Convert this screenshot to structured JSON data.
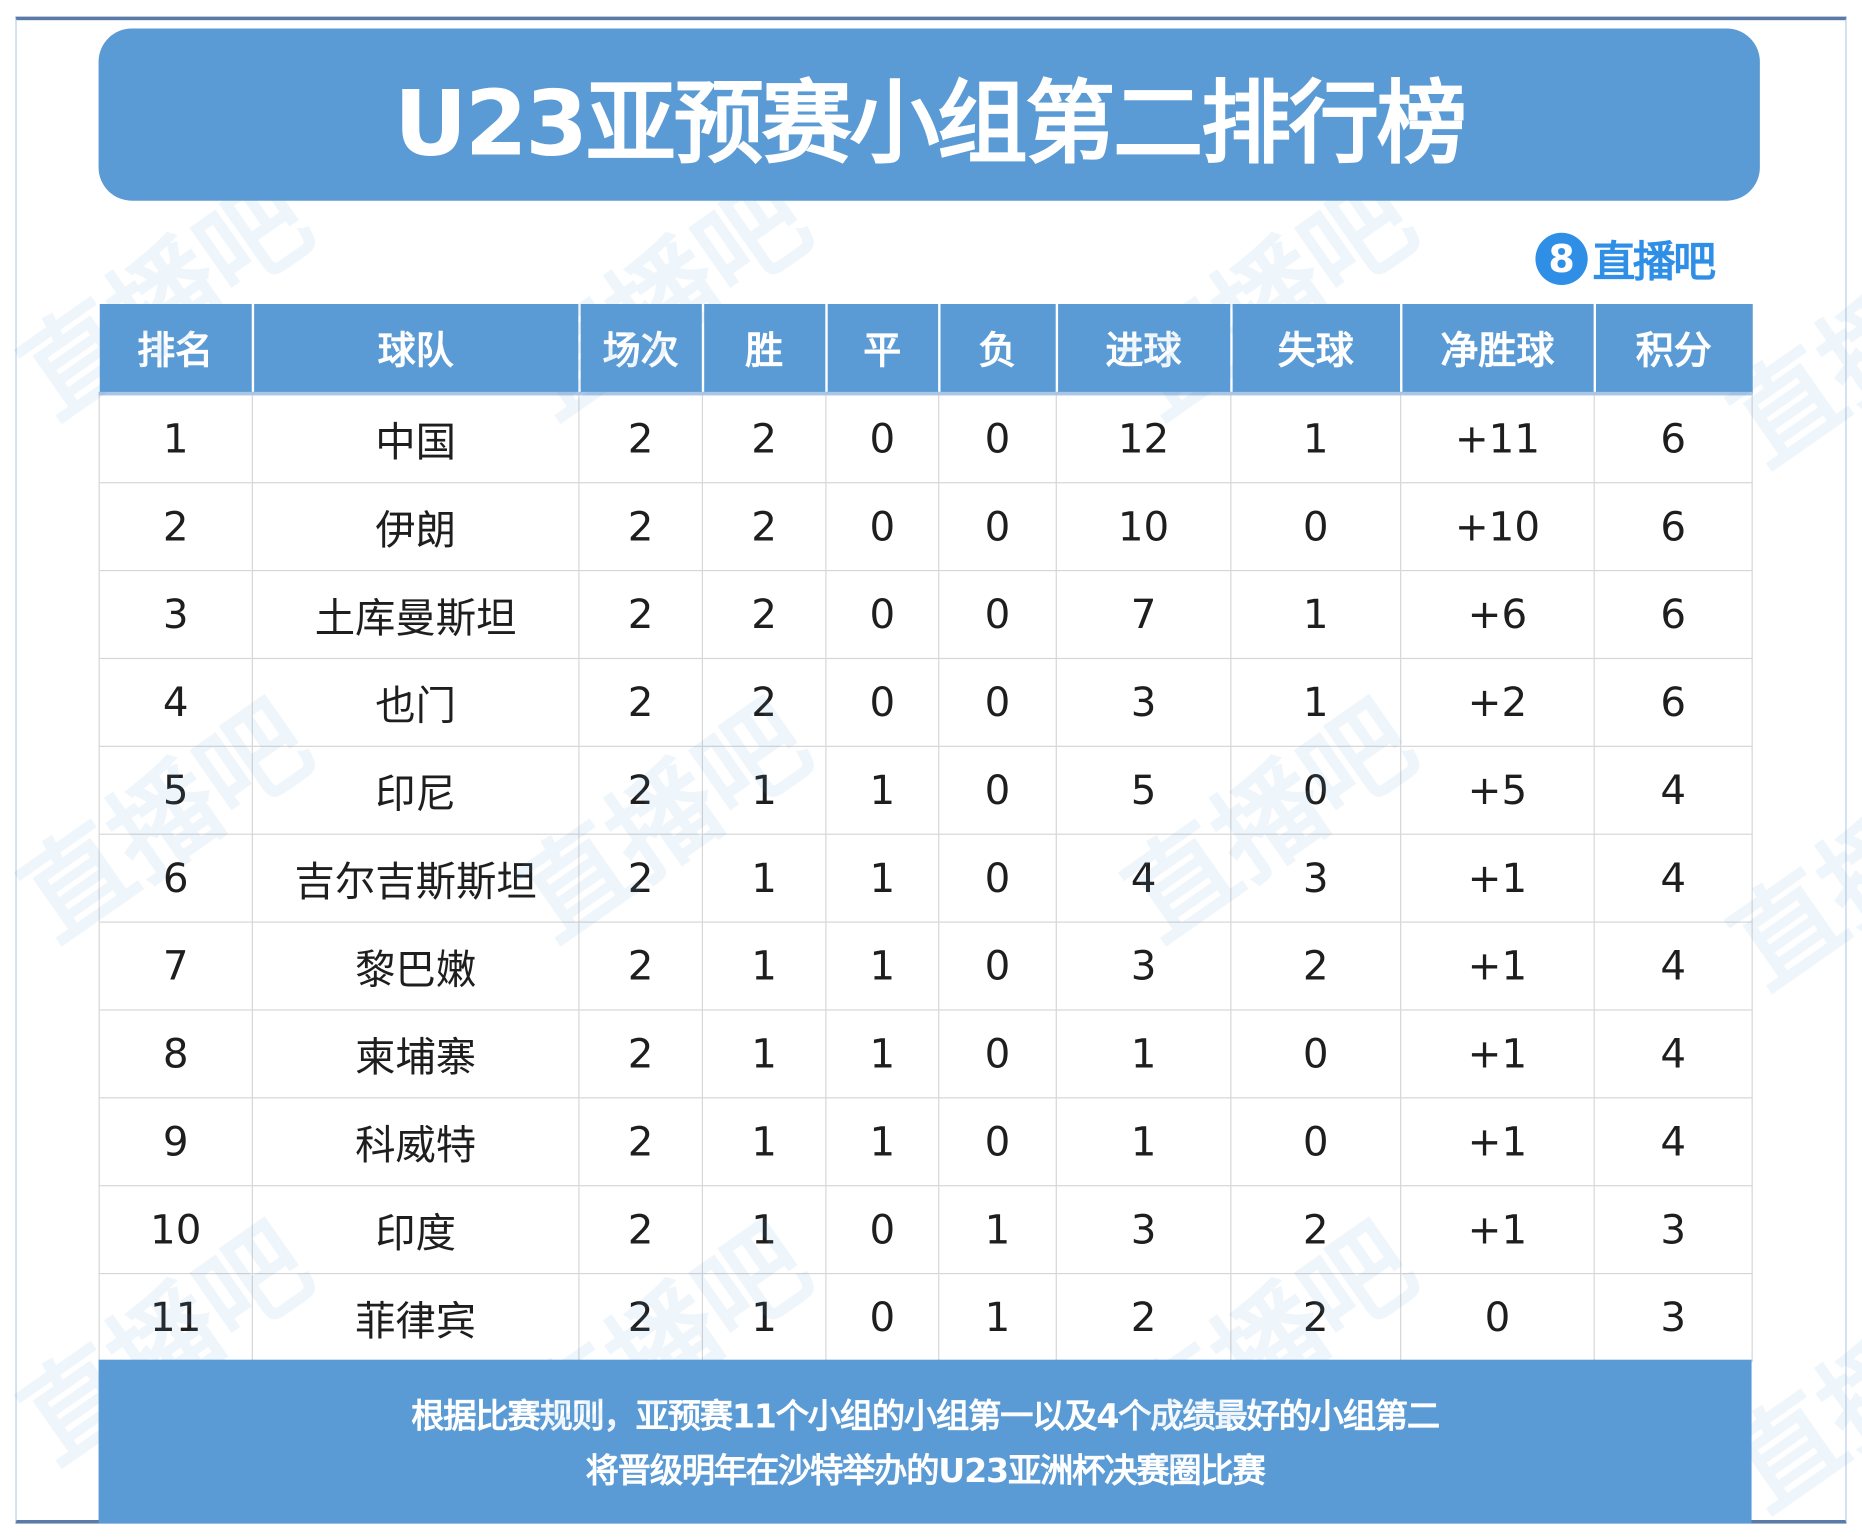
{
  "title": "U23亚预赛小组第二排行榜",
  "logo": {
    "number": "8",
    "text": "直播吧"
  },
  "watermark": "直播吧",
  "colors": {
    "primary": "#5b9bd5",
    "logo": "#2f8fe6"
  },
  "table": {
    "headers": [
      "排名",
      "球队",
      "场次",
      "胜",
      "平",
      "负",
      "进球",
      "失球",
      "净胜球",
      "积分"
    ],
    "rows": [
      [
        "1",
        "中国",
        "2",
        "2",
        "0",
        "0",
        "12",
        "1",
        "+11",
        "6"
      ],
      [
        "2",
        "伊朗",
        "2",
        "2",
        "0",
        "0",
        "10",
        "0",
        "+10",
        "6"
      ],
      [
        "3",
        "土库曼斯坦",
        "2",
        "2",
        "0",
        "0",
        "7",
        "1",
        "+6",
        "6"
      ],
      [
        "4",
        "也门",
        "2",
        "2",
        "0",
        "0",
        "3",
        "1",
        "+2",
        "6"
      ],
      [
        "5",
        "印尼",
        "2",
        "1",
        "1",
        "0",
        "5",
        "0",
        "+5",
        "4"
      ],
      [
        "6",
        "吉尔吉斯斯坦",
        "2",
        "1",
        "1",
        "0",
        "4",
        "3",
        "+1",
        "4"
      ],
      [
        "7",
        "黎巴嫩",
        "2",
        "1",
        "1",
        "0",
        "3",
        "2",
        "+1",
        "4"
      ],
      [
        "8",
        "柬埔寨",
        "2",
        "1",
        "1",
        "0",
        "1",
        "0",
        "+1",
        "4"
      ],
      [
        "9",
        "科威特",
        "2",
        "1",
        "1",
        "0",
        "1",
        "0",
        "+1",
        "4"
      ],
      [
        "10",
        "印度",
        "2",
        "1",
        "0",
        "1",
        "3",
        "2",
        "+1",
        "3"
      ],
      [
        "11",
        "菲律宾",
        "2",
        "1",
        "0",
        "1",
        "2",
        "2",
        "0",
        "3"
      ]
    ]
  },
  "footer": {
    "line1": "根据比赛规则，亚预赛11个小组的小组第一以及4个成绩最好的小组第二",
    "line2": "将晋级明年在沙特举办的U23亚洲杯决赛圈比赛"
  }
}
